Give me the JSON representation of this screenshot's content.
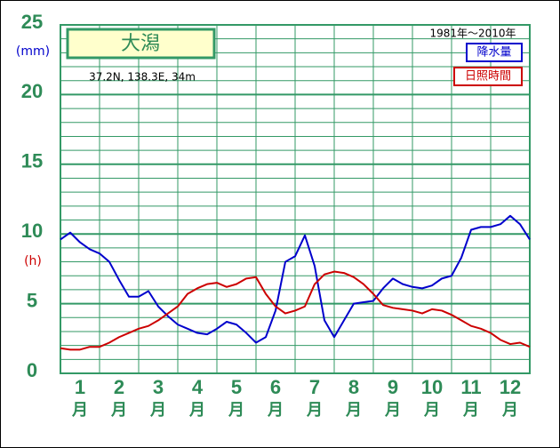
{
  "chart_data": {
    "type": "line",
    "title": "大潟",
    "subtitle": "37.2N, 138.3E, 34m",
    "period": "1981年〜2010年",
    "y_unit_precip": "(mm)",
    "y_unit_sun": "(h)",
    "x_unit": "月",
    "x": [
      0.5,
      0.75,
      1,
      1.25,
      1.5,
      1.75,
      2,
      2.25,
      2.5,
      2.75,
      3,
      3.25,
      3.5,
      3.75,
      4,
      4.25,
      4.5,
      4.75,
      5,
      5.25,
      5.5,
      5.75,
      6,
      6.25,
      6.5,
      6.75,
      7,
      7.25,
      7.5,
      7.75,
      8,
      8.25,
      8.5,
      8.75,
      9,
      9.25,
      9.5,
      9.75,
      10,
      10.25,
      10.5,
      10.75,
      11,
      11.25,
      11.5,
      11.75,
      12,
      12.25,
      12.5
    ],
    "series": [
      {
        "name": "降水量",
        "color": "#0000cc",
        "values": [
          9.6,
          10.1,
          9.4,
          8.9,
          8.6,
          8.0,
          6.7,
          5.5,
          5.5,
          5.9,
          4.8,
          4.1,
          3.5,
          3.2,
          2.9,
          2.8,
          3.2,
          3.7,
          3.5,
          2.9,
          2.2,
          2.6,
          4.5,
          8.0,
          8.4,
          9.9,
          7.7,
          3.8,
          2.6,
          3.8,
          5.0,
          5.1,
          5.2,
          6.1,
          6.8,
          6.4,
          6.2,
          6.1,
          6.3,
          6.8,
          7.0,
          8.3,
          10.3,
          10.5,
          10.5,
          10.7,
          11.3,
          10.7,
          9.6
        ]
      },
      {
        "name": "日照時間",
        "color": "#cc0000",
        "values": [
          1.8,
          1.7,
          1.7,
          1.9,
          1.9,
          2.2,
          2.6,
          2.9,
          3.2,
          3.4,
          3.8,
          4.3,
          4.8,
          5.7,
          6.1,
          6.4,
          6.5,
          6.2,
          6.4,
          6.8,
          6.9,
          5.7,
          4.8,
          4.3,
          4.5,
          4.8,
          6.4,
          7.1,
          7.3,
          7.2,
          6.9,
          6.4,
          5.7,
          4.9,
          4.7,
          4.6,
          4.5,
          4.3,
          4.6,
          4.5,
          4.2,
          3.8,
          3.4,
          3.2,
          2.9,
          2.4,
          2.1,
          2.2,
          1.9
        ]
      }
    ],
    "xlim": [
      0.5,
      12.5
    ],
    "xticks": [
      1,
      2,
      3,
      4,
      5,
      6,
      7,
      8,
      9,
      10,
      11,
      12
    ],
    "ylim": [
      0,
      25
    ],
    "yticks": [
      0,
      5,
      10,
      15,
      20,
      25
    ],
    "minor_yticks": [
      1,
      2,
      3,
      4,
      6,
      7,
      8,
      9,
      11,
      12,
      13,
      14,
      16,
      17,
      18,
      19,
      21,
      22,
      23,
      24
    ],
    "grid": true,
    "grid_color": "#339966"
  }
}
